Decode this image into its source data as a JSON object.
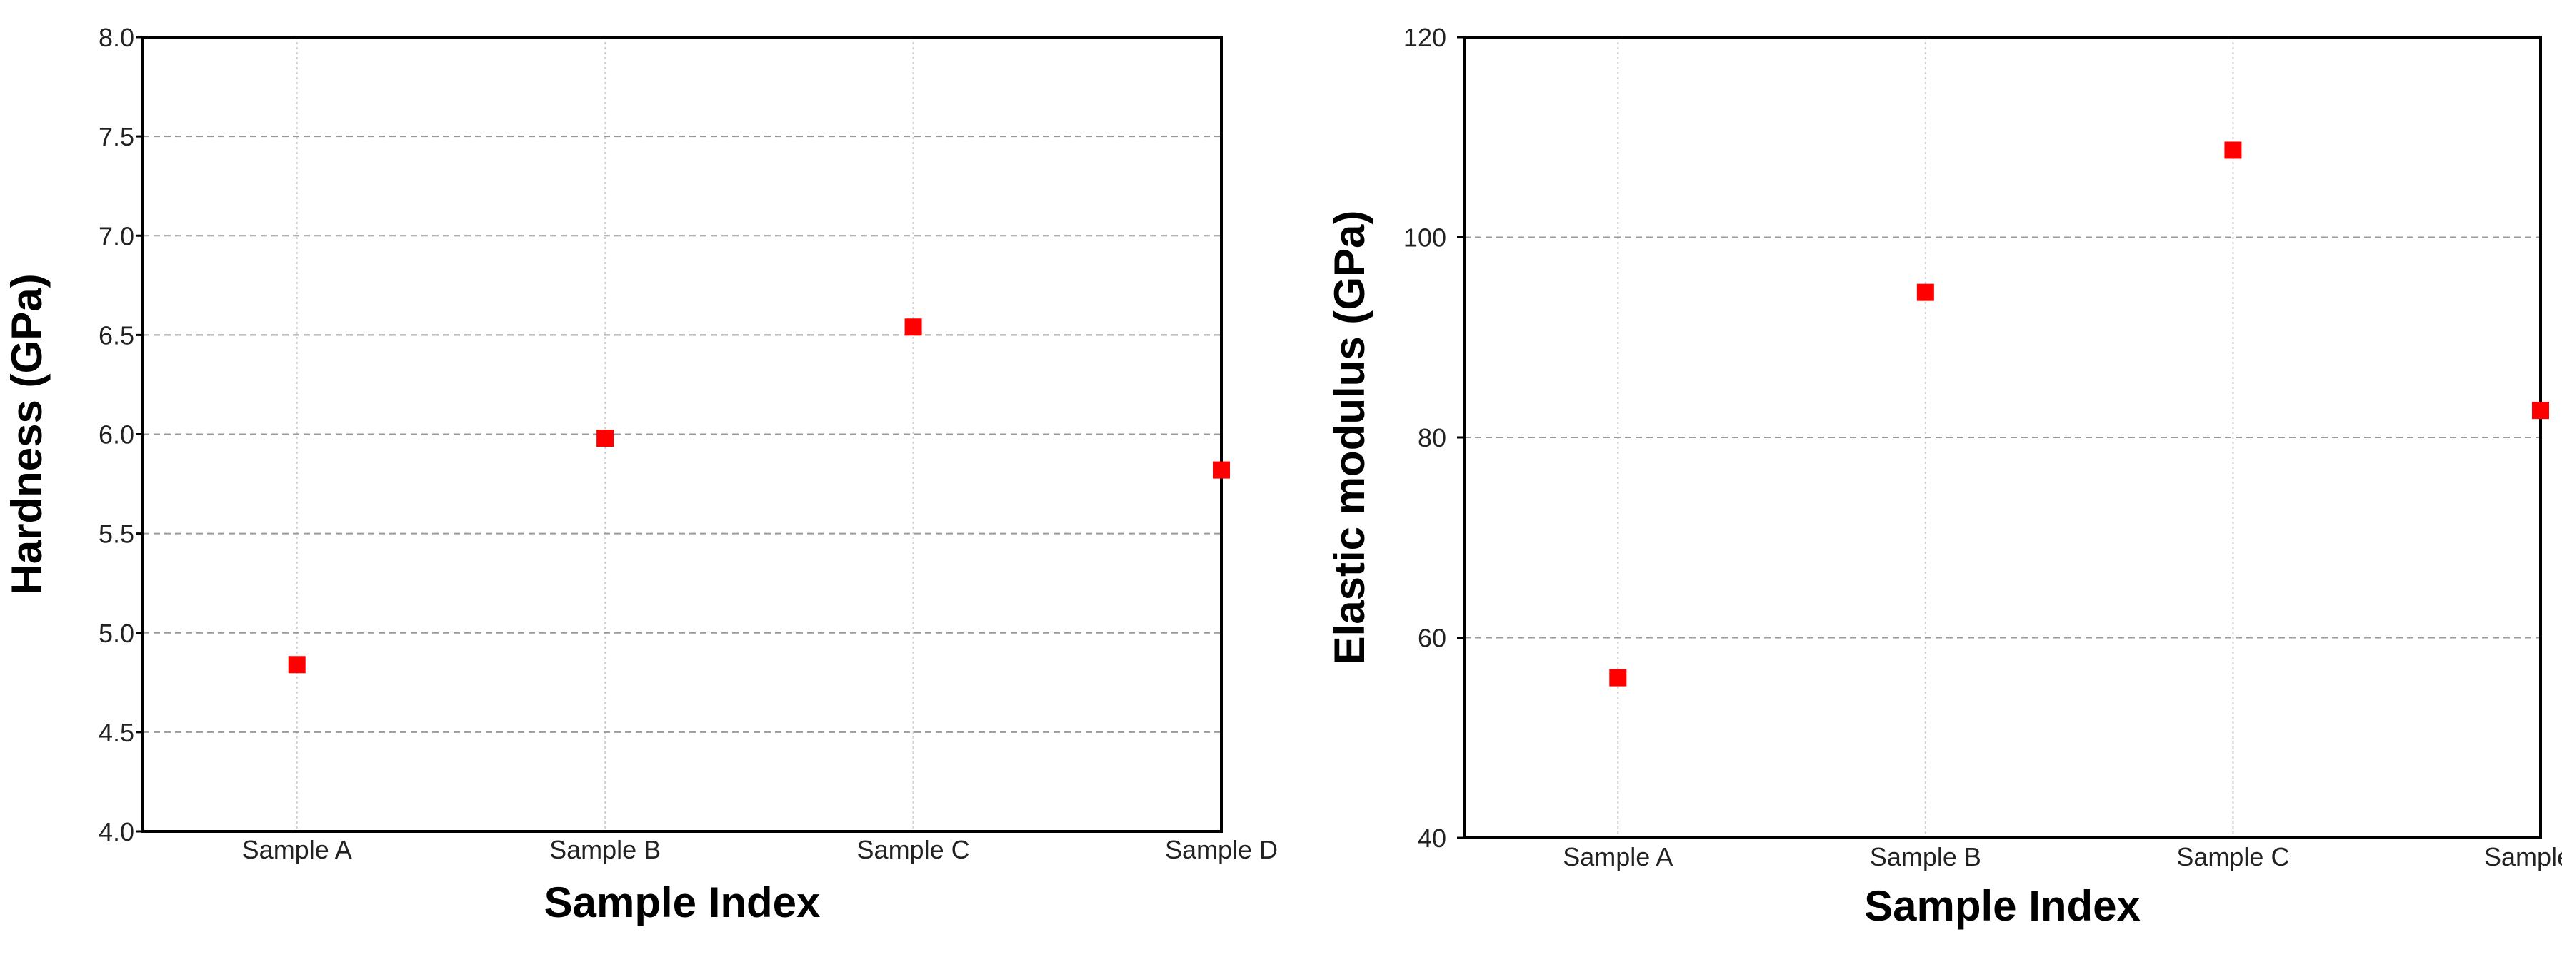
{
  "chart_data": [
    {
      "type": "scatter",
      "title": "",
      "xlabel": "Sample Index",
      "ylabel": "Hardness (GPa)",
      "categories": [
        "Sample A",
        "Sample B",
        "Sample C",
        "Sample D"
      ],
      "values": [
        4.84,
        5.98,
        6.54,
        5.82
      ],
      "ylim": [
        4.0,
        8.0
      ],
      "yticks": [
        "4.0",
        "4.5",
        "5.0",
        "5.5",
        "6.0",
        "6.5",
        "7.0",
        "7.5",
        "8.0"
      ],
      "grid": true,
      "marker": "square",
      "color": "#ff0000"
    },
    {
      "type": "scatter",
      "title": "",
      "xlabel": "Sample Index",
      "ylabel": "Elastic modulus (GPa)",
      "categories": [
        "Sample A",
        "Sample B",
        "Sample C",
        "Sample D"
      ],
      "values": [
        56.0,
        94.5,
        108.7,
        82.7
      ],
      "ylim": [
        40,
        120
      ],
      "yticks": [
        "40",
        "60",
        "80",
        "100",
        "120"
      ],
      "grid": true,
      "marker": "square",
      "color": "#ff0000"
    }
  ]
}
